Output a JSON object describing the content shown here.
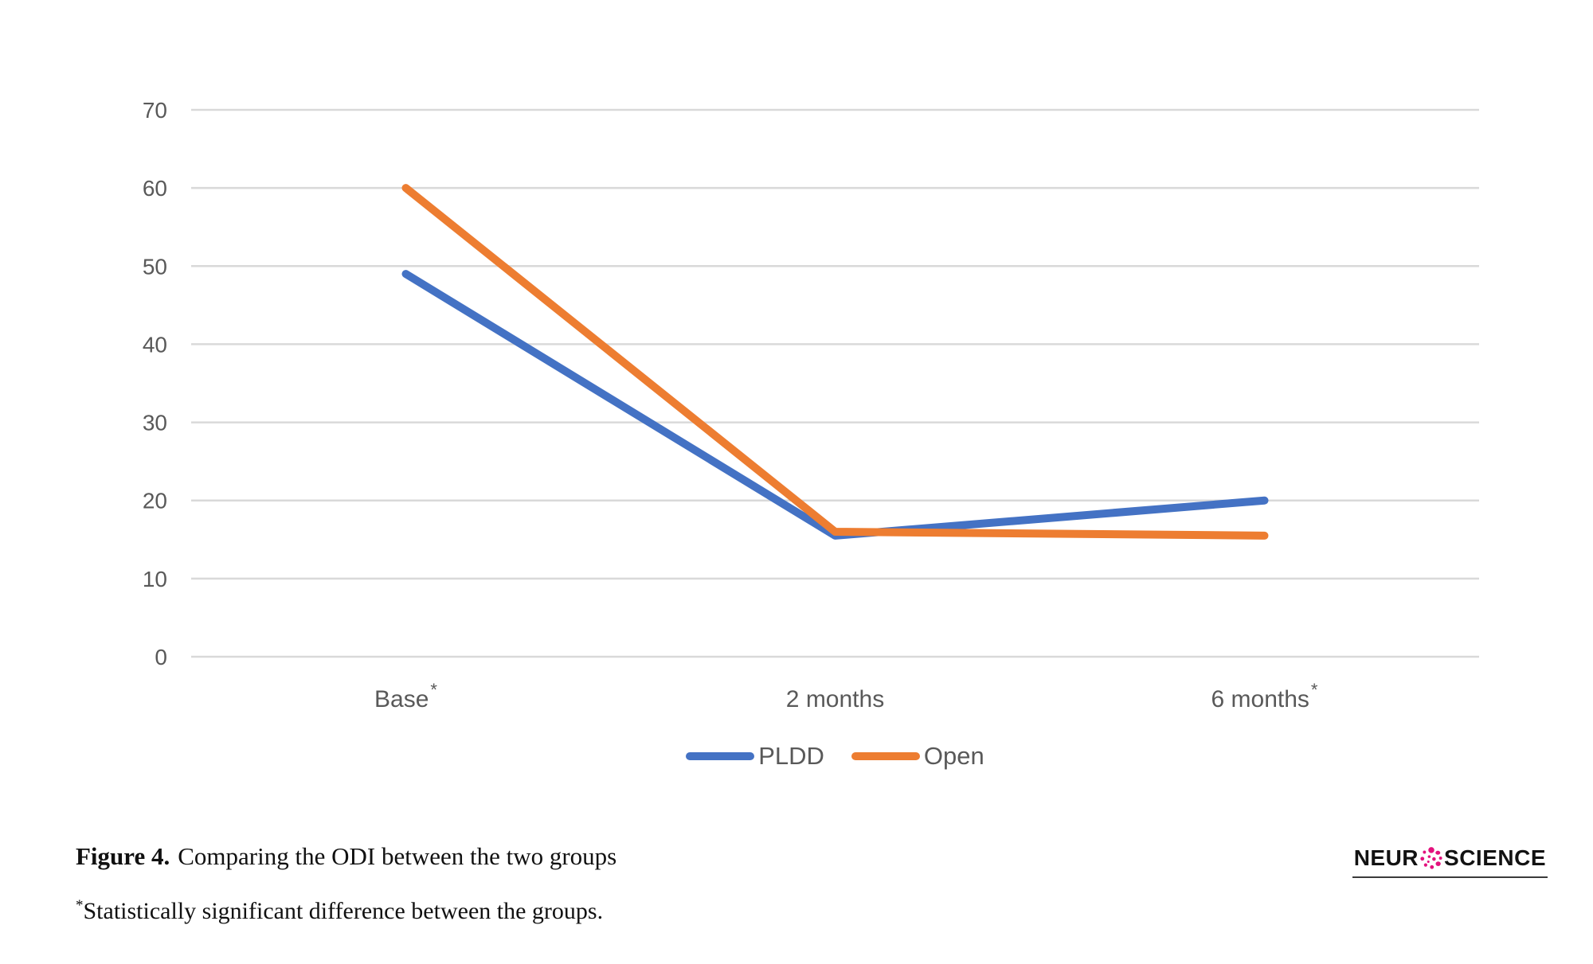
{
  "figure": {
    "caption_label": "Figure 4.",
    "caption_text": "Comparing the ODI between the two groups",
    "footnote_symbol": "*",
    "footnote_text": "Statistically significant difference between the groups."
  },
  "logo": {
    "left_text": "NEUR",
    "right_text": "SCIENCE",
    "icon": "cell-dots-icon",
    "accent_color": "#E3117D",
    "text_color": "#121212"
  },
  "chart_data": {
    "type": "line",
    "title": "",
    "xlabel": "",
    "ylabel": "",
    "categories": [
      {
        "label": "Base",
        "asterisk": "*"
      },
      {
        "label": "2 months",
        "asterisk": ""
      },
      {
        "label": "6 months",
        "asterisk": "*"
      }
    ],
    "series": [
      {
        "name": "PLDD",
        "color": "#4472C4",
        "values": [
          49,
          15.5,
          20
        ]
      },
      {
        "name": "Open",
        "color": "#ED7D31",
        "values": [
          60,
          16,
          15.5
        ]
      }
    ],
    "ylim": [
      0,
      70
    ],
    "ytick_step": 10,
    "grid": true,
    "gridline_color": "#D9D9D9",
    "axis_label_color": "#595959",
    "legend_position": "bottom"
  }
}
